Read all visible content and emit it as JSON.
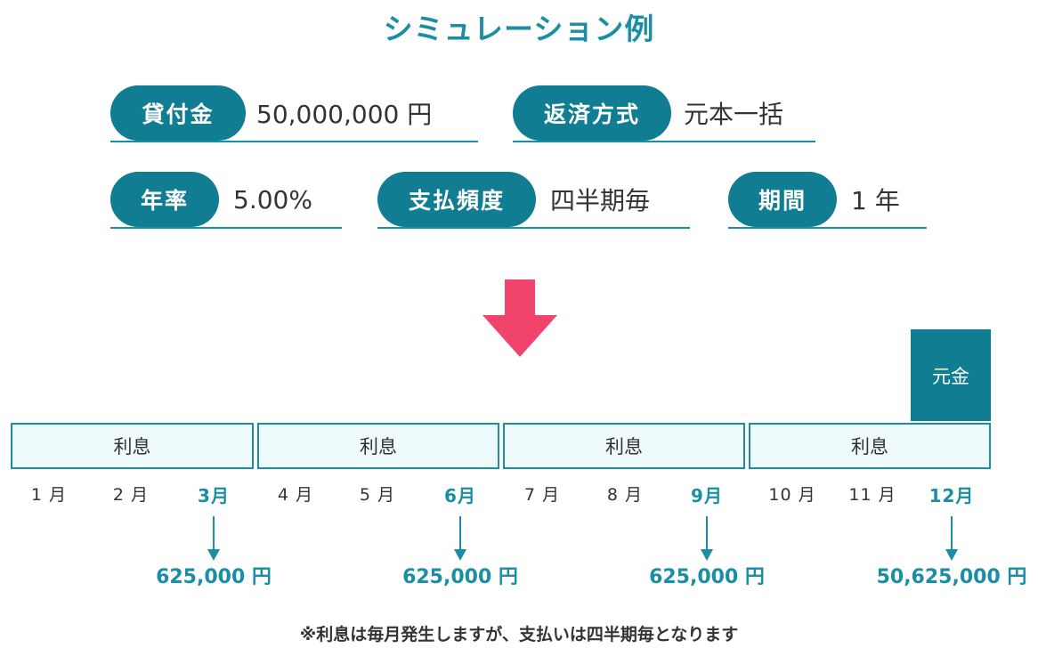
{
  "title": "シミュレーション例",
  "params": {
    "loan": {
      "label": "貸付金",
      "value": "50,000,000 円"
    },
    "method": {
      "label": "返済方式",
      "value": "元本一括"
    },
    "rate": {
      "label": "年率",
      "value": "5.00%"
    },
    "frequency": {
      "label": "支払頻度",
      "value": "四半期毎"
    },
    "term": {
      "label": "期間",
      "value": "1 年"
    }
  },
  "principal_label": "元金",
  "quarters": [
    "利息",
    "利息",
    "利息",
    "利息"
  ],
  "months": [
    "1 月",
    "2 月",
    "3月",
    "4 月",
    "5 月",
    "6月",
    "7 月",
    "8 月",
    "9月",
    "10 月",
    "11 月",
    "12月"
  ],
  "payments": [
    "625,000 円",
    "625,000 円",
    "625,000 円",
    "50,625,000 円"
  ],
  "note": "※利息は毎月発生しますが、支払いは四半期毎となります",
  "colors": {
    "accent": "#1a8ea4",
    "pill": "#117d92",
    "arrow": "#f0446c",
    "box_fill": "#eefafb"
  }
}
